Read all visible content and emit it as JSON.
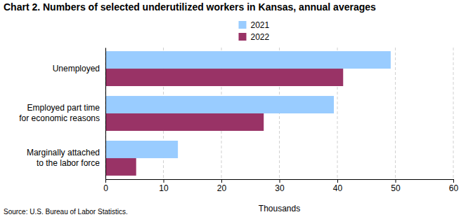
{
  "chart_data": {
    "type": "bar",
    "orientation": "horizontal",
    "title": "Chart 2. Numbers of selected underutilized workers in Kansas, annual averages",
    "categories": [
      "Unemployed",
      "Employed part time\nfor economic reasons",
      "Marginally attached\nto the labor force"
    ],
    "series": [
      {
        "name": "2021",
        "color": "#99ccff",
        "values": [
          49.2,
          39.4,
          12.5
        ]
      },
      {
        "name": "2022",
        "color": "#993366",
        "values": [
          41.0,
          27.3,
          5.3
        ]
      }
    ],
    "xlabel": "Thousands",
    "xlim": [
      0,
      60
    ],
    "xticks": [
      0,
      10,
      20,
      30,
      40,
      50,
      60
    ],
    "grid": true,
    "legend": "top",
    "source": "Source: U.S. Bureau of Labor Statistics."
  }
}
